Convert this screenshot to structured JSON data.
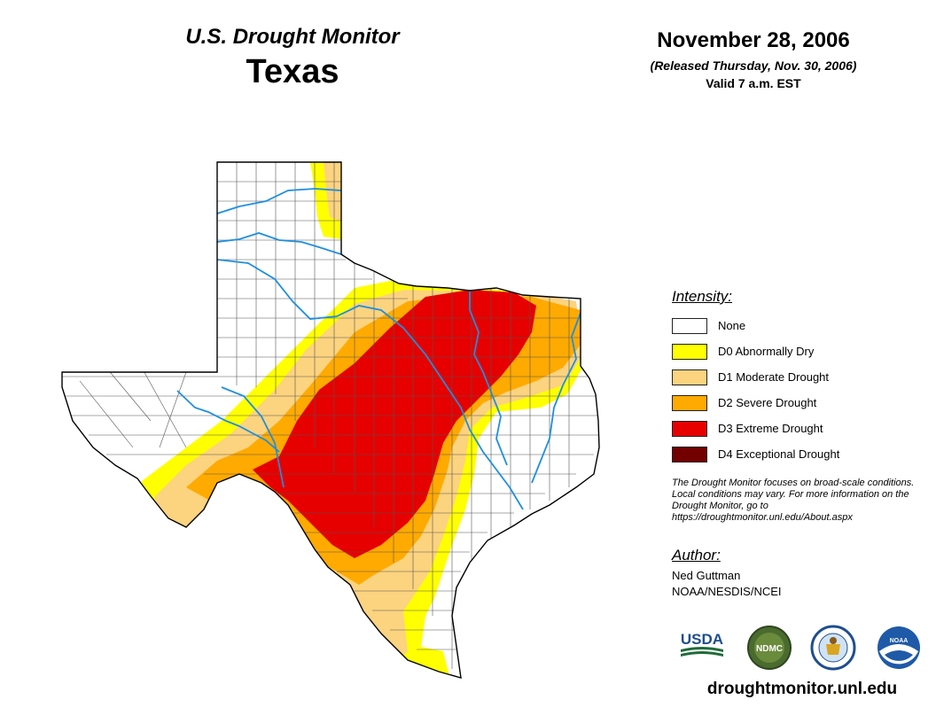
{
  "header": {
    "product": "U.S. Drought Monitor",
    "region": "Texas",
    "date": "November 28, 2006",
    "released": "(Released Thursday, Nov. 30, 2006)",
    "valid": "Valid 7 a.m. EST"
  },
  "legend": {
    "heading": "Intensity:",
    "items": [
      {
        "label": "None",
        "color": "#ffffff"
      },
      {
        "label": "D0 Abnormally Dry",
        "color": "#ffff00"
      },
      {
        "label": "D1 Moderate Drought",
        "color": "#fcd37f"
      },
      {
        "label": "D2 Severe Drought",
        "color": "#ffaa00"
      },
      {
        "label": "D3 Extreme Drought",
        "color": "#e60000"
      },
      {
        "label": "D4 Exceptional Drought",
        "color": "#730000"
      }
    ]
  },
  "note": "The Drought Monitor focuses on broad-scale conditions. Local conditions may vary. For more information on the Drought Monitor, go to https://droughtmonitor.unl.edu/About.aspx",
  "author": {
    "heading": "Author:",
    "name": "Ned Guttman",
    "org": "NOAA/NESDIS/NCEI"
  },
  "logos": {
    "usda": "USDA",
    "ndmc": "NDMC",
    "noaa": "NOAA"
  },
  "site": "droughtmonitor.unl.edu",
  "map_colors": {
    "river": "#1e8fe0",
    "border": "#000000",
    "county": "#555555"
  }
}
